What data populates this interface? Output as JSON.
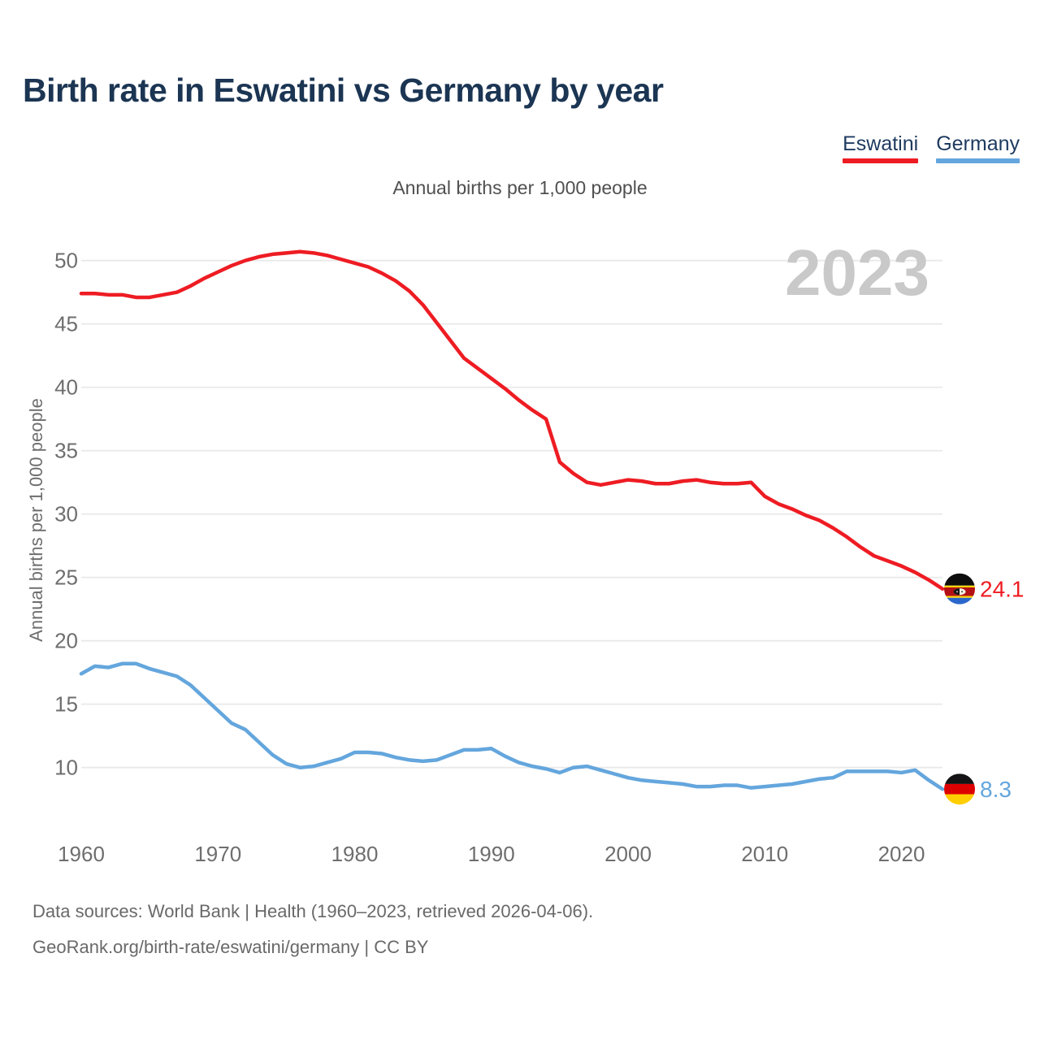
{
  "header": {
    "title": "Birth rate in Eswatini vs Germany by year"
  },
  "legend": {
    "items": [
      {
        "label": "Eswatini",
        "color": "#ee1c23"
      },
      {
        "label": "Germany",
        "color": "#64a6dd"
      }
    ]
  },
  "chart_data": {
    "type": "line",
    "title": "Birth rate in Eswatini vs Germany by year",
    "subtitle": "Annual births per 1,000 people",
    "ylabel": "Annual births per 1,000 people",
    "watermark": "2023",
    "grid": "horizontal",
    "legend_position": "top-right",
    "xlim": [
      1960,
      2023
    ],
    "ylim": [
      7.5,
      52.5
    ],
    "x_ticks": [
      1960,
      1970,
      1980,
      1990,
      2000,
      2010,
      2020
    ],
    "y_ticks": [
      10,
      15,
      20,
      25,
      30,
      35,
      40,
      45,
      50
    ],
    "x": [
      1960,
      1961,
      1962,
      1963,
      1964,
      1965,
      1966,
      1967,
      1968,
      1969,
      1970,
      1971,
      1972,
      1973,
      1974,
      1975,
      1976,
      1977,
      1978,
      1979,
      1980,
      1981,
      1982,
      1983,
      1984,
      1985,
      1986,
      1987,
      1988,
      1989,
      1990,
      1991,
      1992,
      1993,
      1994,
      1995,
      1996,
      1997,
      1998,
      1999,
      2000,
      2001,
      2002,
      2003,
      2004,
      2005,
      2006,
      2007,
      2008,
      2009,
      2010,
      2011,
      2012,
      2013,
      2014,
      2015,
      2016,
      2017,
      2018,
      2019,
      2020,
      2021,
      2022,
      2023
    ],
    "series": [
      {
        "name": "Eswatini",
        "color": "#ee1c23",
        "flag": "eswatini-flag",
        "end_label": "24.1",
        "values": [
          47.4,
          47.4,
          47.3,
          47.3,
          47.1,
          47.1,
          47.3,
          47.5,
          48.0,
          48.6,
          49.1,
          49.6,
          50.0,
          50.3,
          50.5,
          50.6,
          50.7,
          50.6,
          50.4,
          50.1,
          49.8,
          49.5,
          49.0,
          48.4,
          47.6,
          46.5,
          45.1,
          43.7,
          42.3,
          41.5,
          40.7,
          39.9,
          39.0,
          38.2,
          37.5,
          34.1,
          33.2,
          32.5,
          32.3,
          32.5,
          32.7,
          32.6,
          32.4,
          32.4,
          32.6,
          32.7,
          32.5,
          32.4,
          32.4,
          32.5,
          31.4,
          30.8,
          30.4,
          29.9,
          29.5,
          28.9,
          28.2,
          27.4,
          26.7,
          26.3,
          25.9,
          25.4,
          24.8,
          24.1
        ]
      },
      {
        "name": "Germany",
        "color": "#64a6dd",
        "flag": "germany-flag",
        "end_label": "8.3",
        "values": [
          17.4,
          18.0,
          17.9,
          18.2,
          18.2,
          17.8,
          17.5,
          17.2,
          16.5,
          15.5,
          14.5,
          13.5,
          13.0,
          12.0,
          11.0,
          10.3,
          10.0,
          10.1,
          10.4,
          10.7,
          11.2,
          11.2,
          11.1,
          10.8,
          10.6,
          10.5,
          10.6,
          11.0,
          11.4,
          11.4,
          11.5,
          10.9,
          10.4,
          10.1,
          9.9,
          9.6,
          10.0,
          10.1,
          9.8,
          9.5,
          9.2,
          9.0,
          8.9,
          8.8,
          8.7,
          8.5,
          8.5,
          8.6,
          8.6,
          8.4,
          8.5,
          8.6,
          8.7,
          8.9,
          9.1,
          9.2,
          9.7,
          9.7,
          9.7,
          9.7,
          9.6,
          9.8,
          9.0,
          8.3
        ]
      }
    ]
  },
  "sources": {
    "line1": "Data sources: World Bank | Health (1960–2023, retrieved 2026-04-06).",
    "line2": "GeoRank.org/birth-rate/eswatini/germany | CC BY"
  }
}
